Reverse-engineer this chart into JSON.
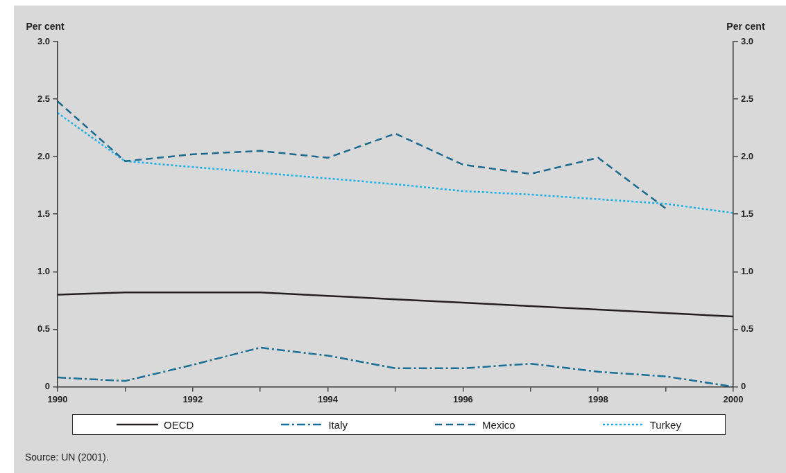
{
  "chart_data": {
    "type": "line",
    "ylabel": "Per cent",
    "y2label": "Per cent",
    "x": [
      1990,
      1991,
      1992,
      1993,
      1994,
      1995,
      1996,
      1997,
      1998,
      1999,
      2000
    ],
    "xlim": [
      1990,
      2000
    ],
    "xticks": [
      1990,
      {
        "value": 1991,
        "label": null
      },
      1992,
      {
        "value": 1993,
        "label": null
      },
      1994,
      {
        "value": 1995,
        "label": null
      },
      1996,
      {
        "value": 1997,
        "label": null
      },
      1998,
      {
        "value": 1999,
        "label": null
      },
      2000
    ],
    "ylim": [
      0,
      3
    ],
    "yticks": [
      0,
      0.5,
      {
        "value": 1,
        "label": "1.0"
      },
      1.5,
      {
        "value": 2,
        "label": "2.0"
      },
      2.5,
      {
        "value": 3,
        "label": "3.0"
      }
    ],
    "y2lim": [
      0,
      3
    ],
    "y2ticks": [
      0,
      0.5,
      {
        "value": 1,
        "label": "1.0"
      },
      1.5,
      {
        "value": 2,
        "label": "2.0"
      },
      2.5,
      {
        "value": 3,
        "label": "3.0"
      }
    ],
    "series": [
      {
        "name": "OECD",
        "color": "#231f20",
        "line_style": "solid",
        "values": [
          0.8,
          0.82,
          0.82,
          0.82,
          0.79,
          0.76,
          0.73,
          0.7,
          0.67,
          0.64,
          0.61
        ]
      },
      {
        "name": "Italy",
        "color": "#1a6f96",
        "line_style": "dashdot",
        "values": [
          0.08,
          0.05,
          0.19,
          0.34,
          0.27,
          0.16,
          0.16,
          0.2,
          0.13,
          0.09,
          0.0
        ]
      },
      {
        "name": "Mexico",
        "color": "#1a6a8f",
        "line_style": "dashed",
        "values": [
          2.48,
          1.96,
          2.02,
          2.05,
          1.99,
          2.2,
          1.93,
          1.85,
          1.99,
          1.55,
          null
        ]
      },
      {
        "name": "Turkey",
        "color": "#1ab0e8",
        "line_style": "dotted",
        "values": [
          2.38,
          1.96,
          1.91,
          1.86,
          1.81,
          1.76,
          1.7,
          1.67,
          1.63,
          1.59,
          1.51
        ]
      }
    ],
    "grid": false,
    "legend": "bottom",
    "marker": "none",
    "annotations": [
      "Source:  UN (2001)."
    ]
  }
}
